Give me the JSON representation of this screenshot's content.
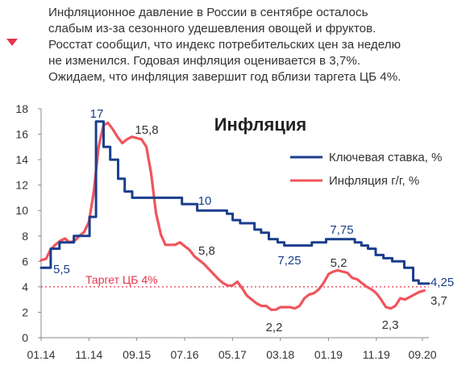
{
  "header": {
    "lines": [
      "Инфляционное давление в России в сентябре осталось",
      "слабым из-за сезонного удешевления овощей и фруктов.",
      "Росстат сообщил, что индекс потребительских цен за неделю",
      "не изменился. Годовая инфляция оценивается в 3,7%.",
      "Ожидаем, что инфляция завершит год вблизи таргета ЦБ 4%."
    ],
    "marker_color": "#e8334a"
  },
  "chart_data": {
    "type": "line",
    "title": "Инфляция",
    "x_ticks": [
      "01.14",
      "11.14",
      "09.15",
      "07.16",
      "05.17",
      "03.18",
      "01.19",
      "11.19",
      "09.20"
    ],
    "y_ticks": [
      "0",
      "2",
      "4",
      "6",
      "8",
      "10",
      "12",
      "14",
      "16",
      "18"
    ],
    "ylim": [
      0,
      18
    ],
    "legend_position": "top-right",
    "target": {
      "label": "Таргет ЦБ 4%",
      "value": 4,
      "color": "#e8334a"
    },
    "series": [
      {
        "name": "Ключевая ставка, %",
        "color": "#1a3e8c",
        "x": [
          "2014-01-01",
          "2014-03-03",
          "2014-04-28",
          "2014-07-28",
          "2014-11-05",
          "2014-12-16",
          "2015-02-02",
          "2015-03-16",
          "2015-05-05",
          "2015-06-16",
          "2015-08-03",
          "2016-06-14",
          "2016-09-19",
          "2017-03-27",
          "2017-05-02",
          "2017-06-19",
          "2017-09-18",
          "2017-10-30",
          "2017-12-18",
          "2018-02-12",
          "2018-03-26",
          "2018-09-17",
          "2018-12-17",
          "2019-06-17",
          "2019-07-29",
          "2019-09-09",
          "2019-10-28",
          "2019-12-16",
          "2020-02-10",
          "2020-04-27",
          "2020-06-22",
          "2020-07-27",
          "2020-09-30"
        ],
        "y": [
          5.5,
          7.0,
          7.5,
          8.0,
          9.5,
          17.0,
          15.0,
          14.0,
          12.5,
          11.5,
          11.0,
          10.5,
          10.0,
          9.75,
          9.25,
          9.0,
          8.5,
          8.25,
          7.75,
          7.5,
          7.25,
          7.5,
          7.75,
          7.5,
          7.25,
          7.0,
          6.5,
          6.25,
          6.0,
          5.5,
          4.5,
          4.25,
          4.25
        ]
      },
      {
        "name": "Инфляция г/г, %",
        "color": "#f0545c",
        "x": [
          "2014-01-01",
          "2014-02-01",
          "2014-03-01",
          "2014-04-01",
          "2014-05-01",
          "2014-06-01",
          "2014-07-01",
          "2014-08-01",
          "2014-09-01",
          "2014-10-01",
          "2014-11-01",
          "2014-12-01",
          "2015-01-01",
          "2015-02-01",
          "2015-03-01",
          "2015-04-01",
          "2015-05-01",
          "2015-06-01",
          "2015-07-01",
          "2015-08-01",
          "2015-09-01",
          "2015-10-01",
          "2015-11-01",
          "2015-12-01",
          "2016-01-01",
          "2016-02-01",
          "2016-03-01",
          "2016-04-01",
          "2016-05-01",
          "2016-06-01",
          "2016-07-01",
          "2016-08-01",
          "2016-09-01",
          "2016-10-01",
          "2016-11-01",
          "2016-12-01",
          "2017-01-01",
          "2017-02-01",
          "2017-03-01",
          "2017-04-01",
          "2017-05-01",
          "2017-06-01",
          "2017-07-01",
          "2017-08-01",
          "2017-09-01",
          "2017-10-01",
          "2017-11-01",
          "2017-12-01",
          "2018-01-01",
          "2018-02-01",
          "2018-03-01",
          "2018-04-01",
          "2018-05-01",
          "2018-06-01",
          "2018-07-01",
          "2018-08-01",
          "2018-09-01",
          "2018-10-01",
          "2018-11-01",
          "2018-12-01",
          "2019-01-01",
          "2019-02-01",
          "2019-03-01",
          "2019-04-01",
          "2019-05-01",
          "2019-06-01",
          "2019-07-01",
          "2019-08-01",
          "2019-09-01",
          "2019-10-01",
          "2019-11-01",
          "2019-12-01",
          "2020-01-01",
          "2020-02-01",
          "2020-03-01",
          "2020-04-01",
          "2020-05-01",
          "2020-06-01",
          "2020-07-01",
          "2020-08-01",
          "2020-09-01"
        ],
        "y": [
          6.1,
          6.2,
          6.9,
          7.3,
          7.6,
          7.8,
          7.5,
          7.6,
          8.0,
          8.3,
          9.1,
          11.4,
          15.0,
          16.7,
          16.9,
          16.4,
          15.8,
          15.3,
          15.6,
          15.8,
          15.7,
          15.6,
          15.0,
          12.9,
          9.8,
          8.1,
          7.3,
          7.3,
          7.3,
          7.5,
          7.2,
          6.9,
          6.4,
          6.1,
          5.8,
          5.4,
          5.0,
          4.6,
          4.3,
          4.1,
          4.1,
          4.4,
          3.9,
          3.3,
          3.0,
          2.7,
          2.5,
          2.5,
          2.2,
          2.2,
          2.4,
          2.4,
          2.4,
          2.3,
          2.5,
          3.1,
          3.4,
          3.5,
          3.8,
          4.3,
          5.0,
          5.2,
          5.3,
          5.2,
          5.1,
          4.7,
          4.6,
          4.3,
          4.0,
          3.8,
          3.5,
          3.0,
          2.4,
          2.3,
          2.5,
          3.1,
          3.0,
          3.2,
          3.4,
          3.6,
          3.7
        ]
      }
    ],
    "annotations": [
      {
        "text": "17",
        "color": "#1a3e8c"
      },
      {
        "text": "15,8",
        "color": "#333333"
      },
      {
        "text": "5,5",
        "color": "#1a3e8c"
      },
      {
        "text": "10",
        "color": "#1a3e8c"
      },
      {
        "text": "5,8",
        "color": "#333333"
      },
      {
        "text": "7,25",
        "color": "#1a3e8c"
      },
      {
        "text": "7,75",
        "color": "#1a3e8c"
      },
      {
        "text": "5,2",
        "color": "#333333"
      },
      {
        "text": "2,2",
        "color": "#333333"
      },
      {
        "text": "2,3",
        "color": "#333333"
      },
      {
        "text": "4,25",
        "color": "#1a3e8c"
      },
      {
        "text": "3,7",
        "color": "#333333"
      }
    ]
  }
}
